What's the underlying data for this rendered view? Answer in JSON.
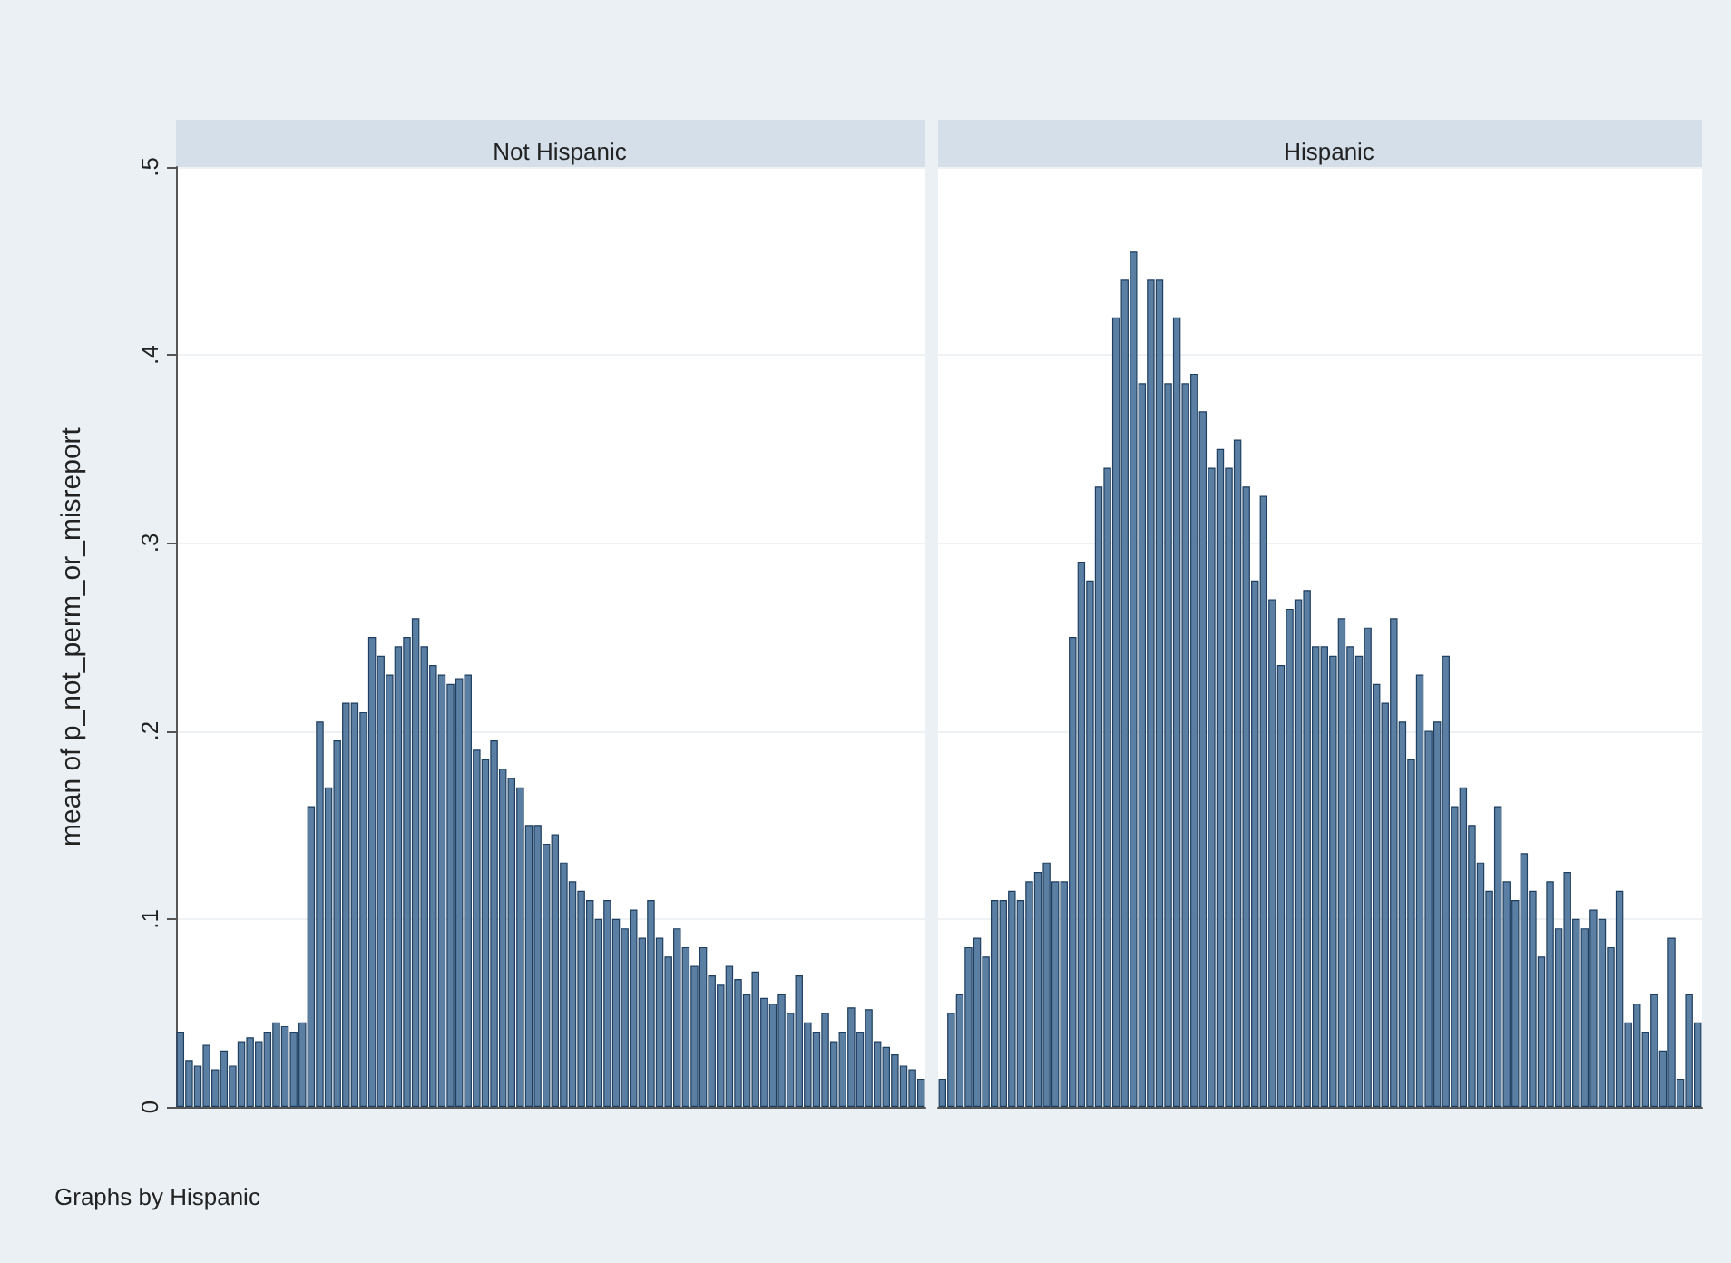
{
  "chart_data": [
    {
      "type": "bar",
      "title": "Not Hispanic",
      "ylabel": "mean of p_not_perm_or_misreport",
      "color": "#5a7fa3",
      "grid": "y",
      "tick_labels": "y",
      "ylim": [
        0,
        0.5
      ],
      "yticks": [
        {
          "value": 0,
          "label": "0"
        },
        {
          "value": 0.1,
          "label": ".1"
        },
        {
          "value": 0.2,
          "label": ".2"
        },
        {
          "value": 0.3,
          "label": ".3"
        },
        {
          "value": 0.4,
          "label": ".4"
        },
        {
          "value": 0.5,
          "label": ".5"
        }
      ],
      "categories": [
        null,
        null,
        null,
        null,
        null,
        null,
        null,
        null,
        null,
        null,
        null,
        null,
        null,
        null,
        null,
        null,
        null,
        null,
        null,
        null,
        null,
        null,
        null,
        null,
        null,
        null,
        null,
        null,
        null,
        null,
        null,
        null,
        null,
        null,
        null,
        null,
        null,
        null,
        null,
        null,
        null,
        null,
        null,
        null,
        null,
        null,
        null,
        null,
        null,
        null,
        null,
        null,
        null,
        null,
        null,
        null,
        null,
        null,
        null,
        null,
        null,
        null,
        null,
        null,
        null,
        null,
        null,
        null,
        null,
        null,
        null,
        null,
        null,
        null,
        null,
        null,
        null,
        null,
        null,
        null,
        null,
        null,
        null,
        null,
        null,
        null
      ],
      "values": [
        0.04,
        0.025,
        0.022,
        0.033,
        0.02,
        0.03,
        0.022,
        0.035,
        0.037,
        0.035,
        0.04,
        0.045,
        0.043,
        0.04,
        0.045,
        0.16,
        0.205,
        0.17,
        0.195,
        0.215,
        0.215,
        0.21,
        0.25,
        0.24,
        0.23,
        0.245,
        0.25,
        0.26,
        0.245,
        0.235,
        0.23,
        0.225,
        0.228,
        0.23,
        0.19,
        0.185,
        0.195,
        0.18,
        0.175,
        0.17,
        0.15,
        0.15,
        0.14,
        0.145,
        0.13,
        0.12,
        0.115,
        0.11,
        0.1,
        0.11,
        0.1,
        0.095,
        0.105,
        0.09,
        0.11,
        0.09,
        0.08,
        0.095,
        0.085,
        0.075,
        0.085,
        0.07,
        0.065,
        0.075,
        0.068,
        0.06,
        0.072,
        0.058,
        0.055,
        0.06,
        0.05,
        0.07,
        0.045,
        0.04,
        0.05,
        0.035,
        0.04,
        0.053,
        0.04,
        0.052,
        0.035,
        0.032,
        0.028,
        0.022,
        0.02,
        0.015
      ],
      "annotations": [
        "Graphs by Hispanic"
      ]
    },
    {
      "type": "bar",
      "title": "Hispanic",
      "color": "#5a7fa3",
      "grid": "y",
      "tick_labels": false,
      "ylim": [
        0,
        0.5
      ],
      "yticks": [
        0,
        0.1,
        0.2,
        0.3,
        0.4,
        0.5
      ],
      "categories": [
        null,
        null,
        null,
        null,
        null,
        null,
        null,
        null,
        null,
        null,
        null,
        null,
        null,
        null,
        null,
        null,
        null,
        null,
        null,
        null,
        null,
        null,
        null,
        null,
        null,
        null,
        null,
        null,
        null,
        null,
        null,
        null,
        null,
        null,
        null,
        null,
        null,
        null,
        null,
        null,
        null,
        null,
        null,
        null,
        null,
        null,
        null,
        null,
        null,
        null,
        null,
        null,
        null,
        null,
        null,
        null,
        null,
        null,
        null,
        null,
        null,
        null,
        null,
        null,
        null,
        null,
        null,
        null,
        null,
        null,
        null,
        null,
        null,
        null,
        null,
        null,
        null,
        null,
        null,
        null,
        null,
        null,
        null,
        null,
        null,
        null,
        null,
        null
      ],
      "values": [
        0.015,
        0.05,
        0.06,
        0.085,
        0.09,
        0.08,
        0.11,
        0.11,
        0.115,
        0.11,
        0.12,
        0.125,
        0.13,
        0.12,
        0.12,
        0.25,
        0.29,
        0.28,
        0.33,
        0.34,
        0.42,
        0.44,
        0.455,
        0.385,
        0.44,
        0.44,
        0.385,
        0.42,
        0.385,
        0.39,
        0.37,
        0.34,
        0.35,
        0.34,
        0.355,
        0.33,
        0.28,
        0.325,
        0.27,
        0.235,
        0.265,
        0.27,
        0.275,
        0.245,
        0.245,
        0.24,
        0.26,
        0.245,
        0.24,
        0.255,
        0.225,
        0.215,
        0.26,
        0.205,
        0.185,
        0.23,
        0.2,
        0.205,
        0.24,
        0.16,
        0.17,
        0.15,
        0.13,
        0.115,
        0.16,
        0.12,
        0.11,
        0.135,
        0.115,
        0.08,
        0.12,
        0.095,
        0.125,
        0.1,
        0.095,
        0.105,
        0.1,
        0.085,
        0.115,
        0.045,
        0.055,
        0.04,
        0.06,
        0.03,
        0.09,
        0.015,
        0.06,
        0.045
      ]
    }
  ]
}
